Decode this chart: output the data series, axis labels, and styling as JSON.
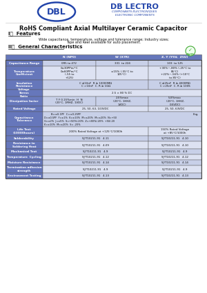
{
  "title": "RoHS Compliant Axial Multilayer Ceramic Capacitor",
  "features_title": "I．  Features",
  "features_line1": "Wide capacitance, temperature, voltage and tolerance range; Industry sizes;",
  "features_line2": "Tape and Reel available for auto placement.",
  "general_title": "II．  General Characteristics",
  "header_bg": "#6677bb",
  "row_bg1": "#c8d0e8",
  "row_bg2": "#dde2f2",
  "col_headers": [
    "N (NP0)",
    "W (X7R)",
    "Z, Y (Y5V,  Z5U)"
  ],
  "bg_color": "#ffffff",
  "header_text": "#ffffff",
  "dark_text": "#111111",
  "logo_color": "#2244aa",
  "rohs_color": "#44aa33",
  "watermark": "#e8eaf6"
}
